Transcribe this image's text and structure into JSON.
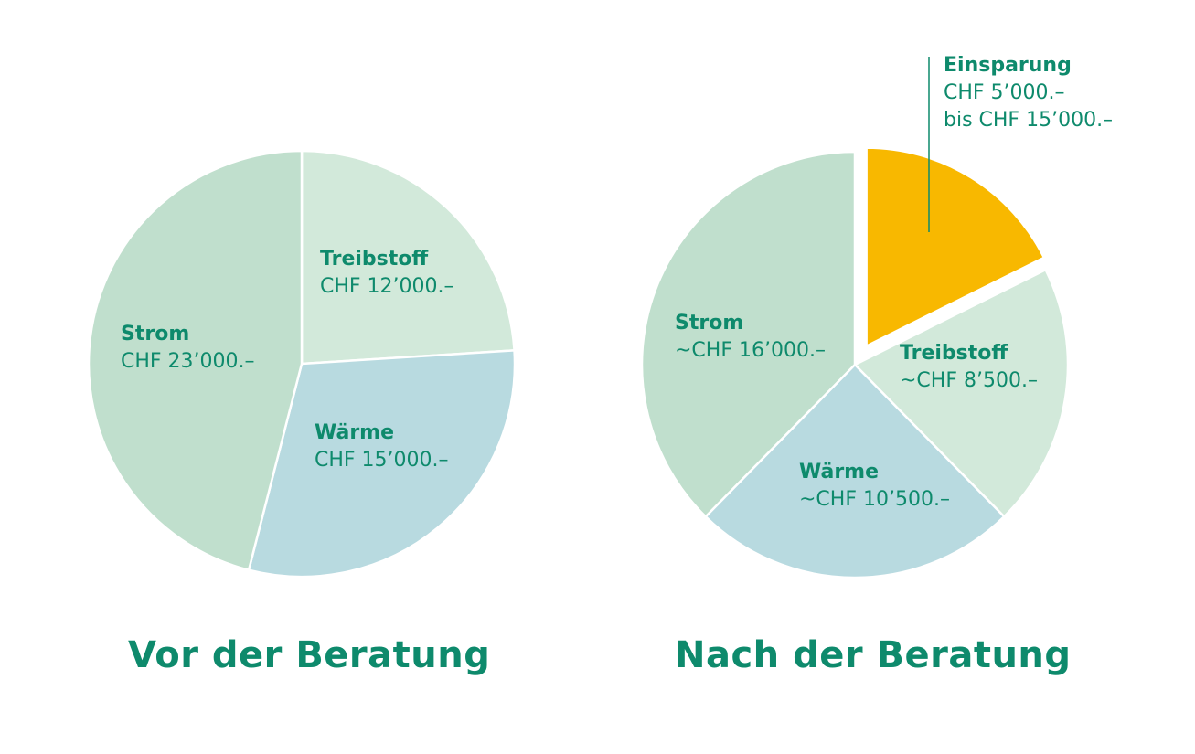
{
  "colors": {
    "text": "#0e8a6c",
    "strom": "#c0dfcd",
    "treibstoff": "#d2e9da",
    "waerme": "#b8dae0",
    "einsparung": "#f8b800",
    "divider": "#ffffff",
    "leader_line": "#0e8a6c"
  },
  "chart_data": [
    {
      "type": "pie",
      "title": "Vor der Beratung",
      "slices": [
        {
          "key": "treibstoff",
          "name": "Treibstoff",
          "label": "CHF 12’000.–",
          "value": 12000
        },
        {
          "key": "waerme",
          "name": "Wärme",
          "label": "CHF 15’000.–",
          "value": 15000
        },
        {
          "key": "strom",
          "name": "Strom",
          "label": "CHF 23’000.–",
          "value": 23000
        }
      ]
    },
    {
      "type": "pie",
      "title": "Nach der Beratung",
      "slices": [
        {
          "key": "einsparung",
          "name": "Einsparung",
          "label": "CHF 5’000.–",
          "label2": "bis CHF 15’000.–",
          "value": 7500,
          "exploded": true
        },
        {
          "key": "treibstoff",
          "name": "Treibstoff",
          "label": "~CHF 8’500.–",
          "value": 8500
        },
        {
          "key": "waerme",
          "name": "Wärme",
          "label": "~CHF 10’500.–",
          "value": 10500
        },
        {
          "key": "strom",
          "name": "Strom",
          "label": "~CHF 16’000.–",
          "value": 16000
        }
      ]
    }
  ]
}
